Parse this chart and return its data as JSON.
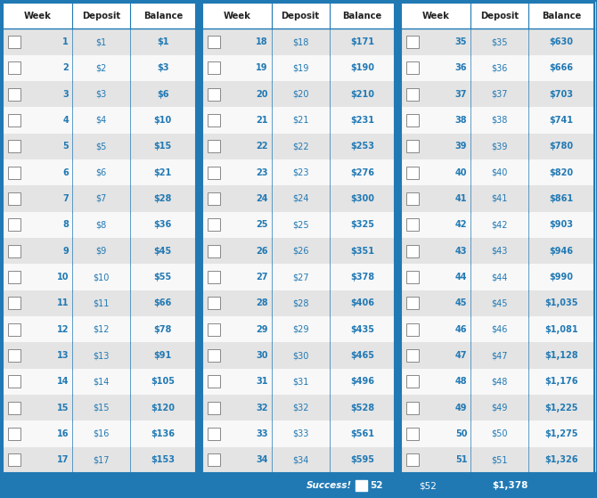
{
  "weeks": [
    1,
    2,
    3,
    4,
    5,
    6,
    7,
    8,
    9,
    10,
    11,
    12,
    13,
    14,
    15,
    16,
    17,
    18,
    19,
    20,
    21,
    22,
    23,
    24,
    25,
    26,
    27,
    28,
    29,
    30,
    31,
    32,
    33,
    34,
    35,
    36,
    37,
    38,
    39,
    40,
    41,
    42,
    43,
    44,
    45,
    46,
    47,
    48,
    49,
    50,
    51,
    52
  ],
  "deposits": [
    "$1",
    "$2",
    "$3",
    "$4",
    "$5",
    "$6",
    "$7",
    "$8",
    "$9",
    "$10",
    "$11",
    "$12",
    "$13",
    "$14",
    "$15",
    "$16",
    "$17",
    "$18",
    "$19",
    "$20",
    "$21",
    "$22",
    "$23",
    "$24",
    "$25",
    "$26",
    "$27",
    "$28",
    "$29",
    "$30",
    "$31",
    "$32",
    "$33",
    "$34",
    "$35",
    "$36",
    "$37",
    "$38",
    "$39",
    "$40",
    "$41",
    "$42",
    "$43",
    "$44",
    "$45",
    "$46",
    "$47",
    "$48",
    "$49",
    "$50",
    "$51",
    "$52"
  ],
  "balances": [
    "$1",
    "$3",
    "$6",
    "$10",
    "$15",
    "$21",
    "$28",
    "$36",
    "$45",
    "$55",
    "$66",
    "$78",
    "$91",
    "$105",
    "$120",
    "$136",
    "$153",
    "$171",
    "$190",
    "$210",
    "$231",
    "$253",
    "$276",
    "$300",
    "$325",
    "$351",
    "$378",
    "$406",
    "$435",
    "$465",
    "$496",
    "$528",
    "$561",
    "$595",
    "$630",
    "$666",
    "$703",
    "$741",
    "$780",
    "$820",
    "$861",
    "$903",
    "$946",
    "$990",
    "$1,035",
    "$1,081",
    "$1,128",
    "$1,176",
    "$1,225",
    "$1,275",
    "$1,326",
    "$1,378"
  ],
  "header_bg": "#2179b4",
  "header_text": "#ffffff",
  "row_bg_odd": "#e4e4e4",
  "row_bg_even": "#f8f8f8",
  "text_blue": "#2179b4",
  "text_dark": "#222222",
  "border_color": "#2179b4",
  "outer_border": "#2179b4",
  "col_header": [
    "Week",
    "Deposit",
    "Balance"
  ],
  "footer_success": "Success!",
  "footer_week": "52",
  "footer_dep": "$52",
  "footer_bal": "$1,378"
}
